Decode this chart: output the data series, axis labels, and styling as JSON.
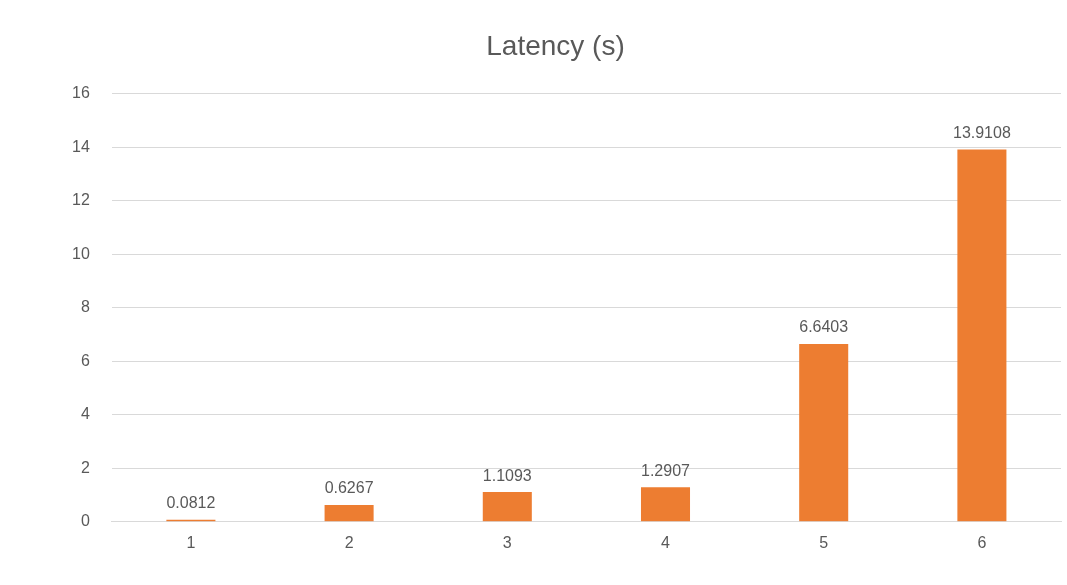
{
  "chart_data": {
    "type": "bar",
    "title": "Latency (s)",
    "categories": [
      "1",
      "2",
      "3",
      "4",
      "5",
      "6"
    ],
    "values": [
      0.0812,
      0.6267,
      1.1093,
      1.2907,
      6.6403,
      13.9108
    ],
    "color": "#ed7d31",
    "ylim": [
      0,
      16
    ],
    "yticks": [
      0,
      2,
      4,
      6,
      8,
      10,
      12,
      14,
      16
    ],
    "grid": "y",
    "data_labels": true,
    "legend": false
  }
}
